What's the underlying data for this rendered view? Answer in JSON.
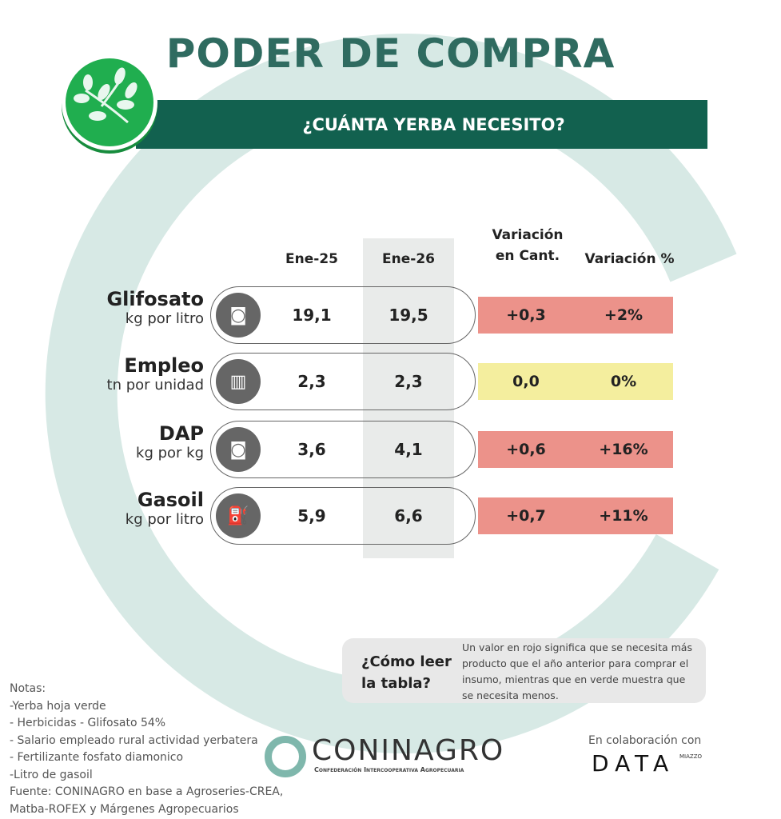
{
  "title": "PODER DE COMPRA",
  "subtitle": "¿CUÁNTA YERBA NECESITO?",
  "columns": {
    "c1": "Ene-25",
    "c2": "Ene-26",
    "c3_line1": "Variación",
    "c3_line2": "en Cant.",
    "c4": "Variación %"
  },
  "rows": [
    {
      "name": "Glifosato",
      "unit": "kg por litro",
      "icon": "herbicide-bag-icon",
      "ene25": "19,1",
      "ene26": "19,5",
      "var_cant": "+0,3",
      "var_pct": "+2%",
      "color": "#ec928a"
    },
    {
      "name": "Empleo",
      "unit": "tn por unidad",
      "icon": "briefcase-icon",
      "ene25": "2,3",
      "ene26": "2,3",
      "var_cant": "0,0",
      "var_pct": "0%",
      "color": "#f4ee9e"
    },
    {
      "name": "DAP",
      "unit": "kg por kg",
      "icon": "fertilizer-bag-icon",
      "ene25": "3,6",
      "ene26": "4,1",
      "var_cant": "+0,6",
      "var_pct": "+16%",
      "color": "#ec928a"
    },
    {
      "name": "Gasoil",
      "unit": "kg por litro",
      "icon": "fuel-pump-icon",
      "ene25": "5,9",
      "ene26": "6,6",
      "var_cant": "+0,7",
      "var_pct": "+11%",
      "color": "#ec928a"
    }
  ],
  "help": {
    "question_line1": "¿Cómo leer",
    "question_line2": "la tabla?",
    "text": "Un valor en rojo significa que se necesita más producto que el año anterior para comprar el insumo, mientras que en verde muestra que se necesita menos."
  },
  "notes": [
    "Notas:",
    "-Yerba hoja verde",
    "- Herbicidas - Glifosato 54%",
    "- Salario empleado rural actividad yerbatera",
    "- Fertilizante fosfato diamonico",
    "-Litro de gasoil",
    "Fuente: CONINAGRO en base a Agroseries-CREA,",
    "Matba-ROFEX y Márgenes Agropecuarios"
  ],
  "coninagro": {
    "name": "CONINAGRO",
    "tagline": "Confederación Intercooperativa Agropecuaria"
  },
  "collab": {
    "label": "En colaboración con",
    "brand": "DATA",
    "brand_sup": "MIAZZO"
  },
  "colors": {
    "title": "#2f6b60",
    "banner": "#12614f",
    "ring": "#d7e9e5",
    "logo_green": "#20ae4f",
    "increase": "#ec928a",
    "neutral": "#f4ee9e"
  }
}
